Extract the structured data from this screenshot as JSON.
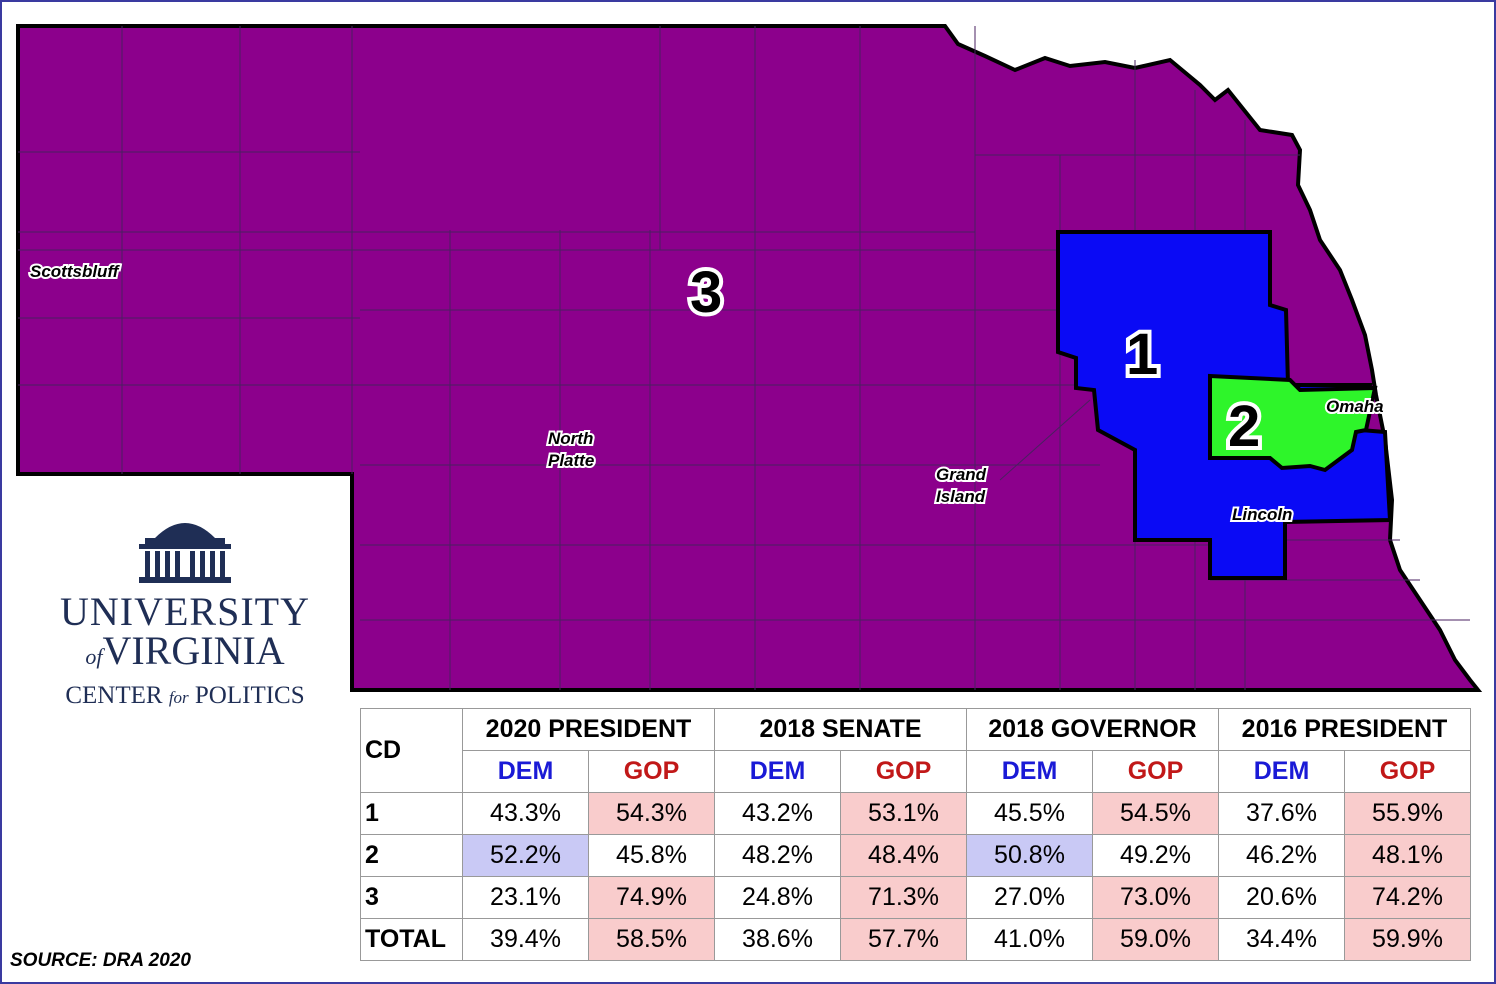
{
  "map": {
    "state": "Nebraska",
    "colors": {
      "cd1": "#0a0af5",
      "cd2": "#2ef52a",
      "cd3": "#8c008c",
      "border": "#000000",
      "county_lines": "#4a2060"
    },
    "district_labels": [
      "1",
      "2",
      "3"
    ],
    "cities": [
      "Scottsbluff",
      "North Platte",
      "Grand Island",
      "Lincoln",
      "Omaha"
    ]
  },
  "logo": {
    "line1": "UNIVERSITY",
    "line2_of": "of",
    "line2": "VIRGINIA",
    "line3a": "CENTER",
    "line3_for": "for",
    "line3b": "POLITICS"
  },
  "source": "SOURCE: DRA 2020",
  "table": {
    "cd_header": "CD",
    "races": [
      "2020 PRESIDENT",
      "2018 SENATE",
      "2018 GOVERNOR",
      "2016 PRESIDENT"
    ],
    "dem_label": "DEM",
    "gop_label": "GOP",
    "rows": [
      {
        "cd": "1",
        "values": [
          "43.3%",
          "54.3%",
          "43.2%",
          "53.1%",
          "45.5%",
          "54.5%",
          "37.6%",
          "55.9%"
        ],
        "winner": [
          "",
          "g",
          "",
          "g",
          "",
          "g",
          "",
          "g"
        ]
      },
      {
        "cd": "2",
        "values": [
          "52.2%",
          "45.8%",
          "48.2%",
          "48.4%",
          "50.8%",
          "49.2%",
          "46.2%",
          "48.1%"
        ],
        "winner": [
          "d",
          "",
          "",
          "g",
          "d",
          "",
          "",
          "g"
        ]
      },
      {
        "cd": "3",
        "values": [
          "23.1%",
          "74.9%",
          "24.8%",
          "71.3%",
          "27.0%",
          "73.0%",
          "20.6%",
          "74.2%"
        ],
        "winner": [
          "",
          "g",
          "",
          "g",
          "",
          "g",
          "",
          "g"
        ]
      },
      {
        "cd": "TOTAL",
        "values": [
          "39.4%",
          "58.5%",
          "38.6%",
          "57.7%",
          "41.0%",
          "59.0%",
          "34.4%",
          "59.9%"
        ],
        "winner": [
          "",
          "g",
          "",
          "g",
          "",
          "g",
          "",
          "g"
        ]
      }
    ]
  }
}
